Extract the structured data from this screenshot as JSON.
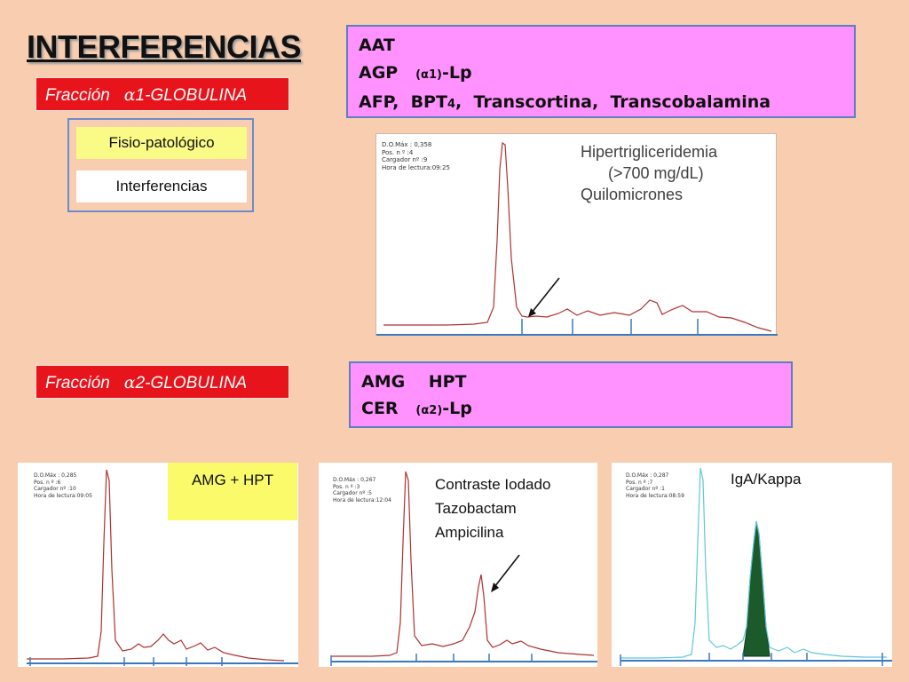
{
  "title": "INTERFERENCIAS",
  "alpha1": {
    "label_prefix": "Fracción",
    "label_greek": "α",
    "label_suffix": "1-GLOBULINA",
    "options": [
      "Fisio-patológico",
      "Interferencias"
    ],
    "proteins": {
      "line1": "AAT",
      "line2_a": "AGP",
      "line2_b": "(α1)",
      "line2_c": "-Lp",
      "line3_a": "AFP,",
      "line3_b": "BPT",
      "line3_sub": "4",
      "line3_c": ",",
      "line3_d": "Transcortina,",
      "line3_e": "Transcobalamina"
    },
    "chart": {
      "info": [
        "D.O.Máx : 0,358",
        "Pos. n º :4",
        "Cargador nº :9",
        "Hora de lectura:09:25"
      ],
      "annotation": [
        "Hipertrigliceridemia",
        "(>700 mg/dL)",
        "Quilomicrones"
      ]
    }
  },
  "alpha2": {
    "label_prefix": "Fracción",
    "label_greek": "α",
    "label_suffix": "2-GLOBULINA",
    "proteins": {
      "line1_a": "AMG",
      "line1_b": "HPT",
      "line2_a": "CER",
      "line2_b": "(α2)",
      "line2_c": "-Lp"
    }
  },
  "panels": [
    {
      "info": [
        "D.O.Máx : 0,285",
        "Pos. n º :6",
        "Cargador nº :10",
        "Hora de lectura:09:05"
      ],
      "annotation": [
        "AMG + HPT"
      ]
    },
    {
      "info": [
        "D.O.Máx : 0,267",
        "Pos. n º :3",
        "Cargador nº :5",
        "Hora de lectura:12:04"
      ],
      "annotation": [
        "Contraste Iodado",
        "Tazobactam",
        "Ampicilina"
      ]
    },
    {
      "info": [
        "D.O.Máx : 0,287",
        "Pos. n º :7",
        "Cargador nº :1",
        "Hora de lectura:08:59"
      ],
      "annotation": [
        "IgA/Kappa"
      ]
    }
  ],
  "colors": {
    "background": "#f8cdb0",
    "label_red": "#e8141c",
    "pink_box": "#ff92ff",
    "trace_red": "#b03030",
    "trace_cyan": "#60c8d8",
    "baseline_blue": "#3a78c0",
    "peak_fill": "#1c5a2c"
  }
}
